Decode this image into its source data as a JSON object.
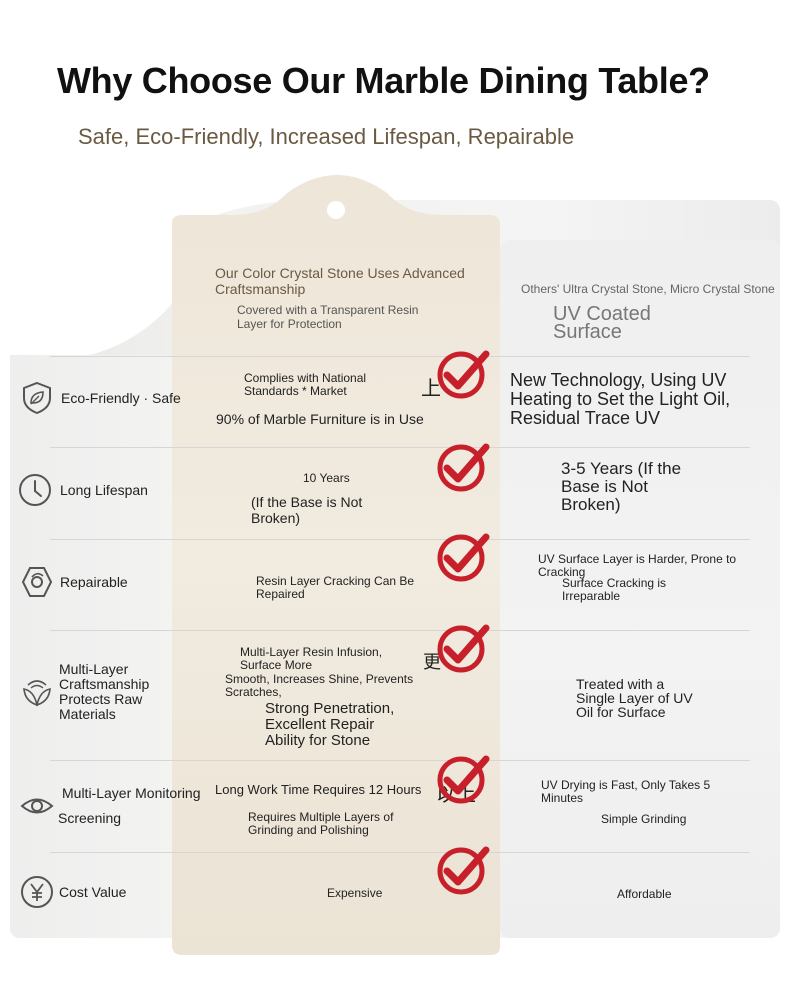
{
  "header": {
    "title": "Why Choose Our Marble Dining Table?",
    "subtitle": "Safe, Eco-Friendly, Increased Lifespan, Repairable"
  },
  "columns": {
    "ours_heading": "Our Color Crystal Stone Uses Advanced Craftsmanship",
    "ours_subheading": "Covered with a Transparent Resin Layer for Protection",
    "others_heading": "Others' Ultra Crystal Stone, Micro Crystal Stone",
    "others_subheading": "UV Coated Surface"
  },
  "rows": [
    {
      "category": "Eco-Friendly · Safe",
      "icon": "leaf-shield-icon",
      "ours": [
        "Complies with National Standards * Market",
        "上",
        "90% of Marble Furniture is in Use"
      ],
      "others": [
        "New Technology, Using UV Heating to Set the Light Oil, Residual Trace UV"
      ]
    },
    {
      "category": "Long Lifespan",
      "icon": "clock-icon",
      "ours": [
        "10 Years",
        "(If the Base is Not Broken)"
      ],
      "others": [
        "3-5 Years (If the Base is Not Broken)"
      ]
    },
    {
      "category": "Repairable",
      "icon": "repair-icon",
      "ours": [
        "Resin Layer Cracking Can Be Repaired"
      ],
      "others": [
        "UV Surface Layer is Harder, Prone to Cracking",
        "Surface Cracking is Irreparable"
      ]
    },
    {
      "category": "Multi-Layer Craftsmanship Protects Raw Materials",
      "icon": "layers-leaf-icon",
      "ours": [
        "Multi-Layer Resin Infusion, Surface More",
        "更",
        "Smooth, Increases Shine, Prevents Scratches,",
        "Strong Penetration, Excellent Repair Ability for Stone"
      ],
      "others": [
        "Treated with a Single Layer of UV Oil for Surface"
      ]
    },
    {
      "category": "Multi-Layer Monitoring",
      "category2": "Screening",
      "icon": "eye-icon",
      "ours": [
        "Long Work Time Requires 12 Hours",
        "以上",
        "Requires Multiple Layers of Grinding and Polishing"
      ],
      "others": [
        "UV Drying is Fast, Only Takes 5 Minutes",
        "Simple Grinding"
      ]
    },
    {
      "category": "Cost Value",
      "icon": "yen-icon",
      "ours": [
        "Expensive"
      ],
      "others": [
        "Affordable"
      ]
    }
  ],
  "colors": {
    "accent_red": "#c8202a",
    "brown_text": "#6b5a43",
    "tag_fill": "#ece4d6"
  }
}
